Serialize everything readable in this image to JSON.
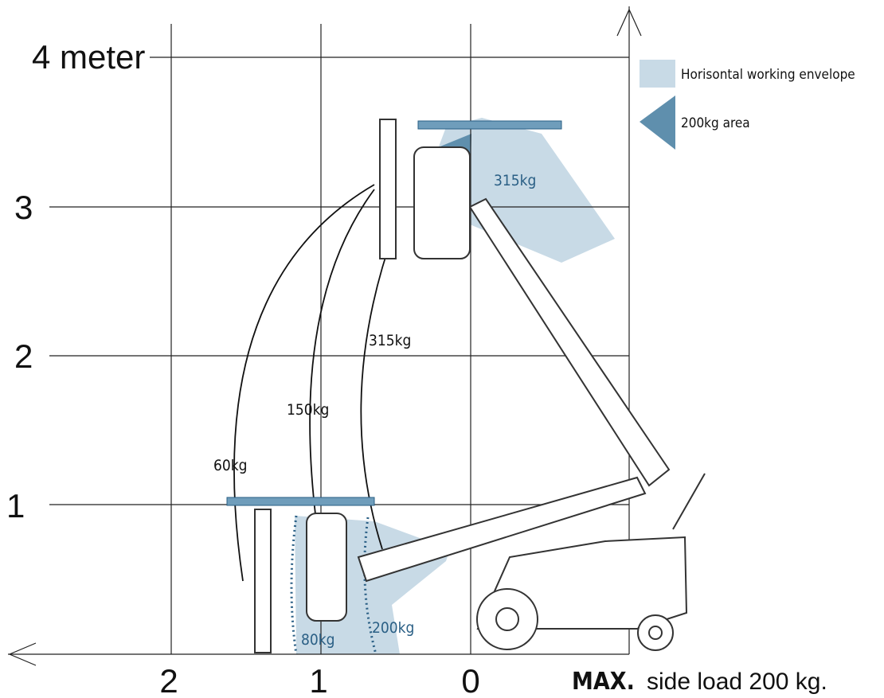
{
  "axes": {
    "y_labels": [
      "4 meter",
      "3",
      "2",
      "1"
    ],
    "x_labels": [
      "2",
      "1",
      "0"
    ]
  },
  "legend": {
    "items": [
      "Horisontal working envelope",
      "200kg area"
    ]
  },
  "load_labels": {
    "upper_envelope": "315kg",
    "arcs": [
      "315kg",
      "150kg",
      "60kg"
    ],
    "lower_inner": "80kg",
    "lower_outer": "200kg"
  },
  "footer": {
    "bold": "MAX.",
    "text": "side load 200 kg."
  }
}
